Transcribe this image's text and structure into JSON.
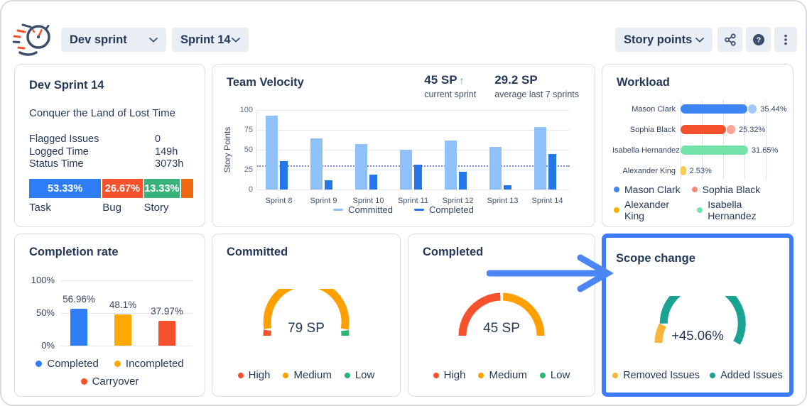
{
  "header": {
    "board_selector": {
      "label": "Dev sprint"
    },
    "sprint_selector": {
      "label": "Sprint 14"
    },
    "unit_selector": {
      "label": "Story points"
    }
  },
  "colors": {
    "navy": "#253858",
    "slate": "#42526E",
    "highlight_border": "#3E7CF7",
    "arrow": "#4C86F2",
    "average_line": "#7B88E8"
  },
  "sprint_card": {
    "title": "Dev Sprint 14",
    "goal": "Conquer the Land of Lost Time",
    "stats": [
      {
        "label": "Flagged Issues",
        "value": "0"
      },
      {
        "label": "Logged Time",
        "value": "149h"
      },
      {
        "label": "Status Time",
        "value": "3073h"
      }
    ],
    "distribution": [
      {
        "label": "Task",
        "value": "53.33%",
        "color": "#2E7CF6",
        "width_pct": 45
      },
      {
        "label": "Bug",
        "value": "26.67%",
        "color": "#F4512C",
        "width_pct": 25
      },
      {
        "label": "Story",
        "value": "13.33%",
        "color": "#3AB27B",
        "width_pct": 22.5
      },
      {
        "label": "",
        "value": "",
        "color": "#F06A11",
        "width_pct": 7.5
      }
    ]
  },
  "velocity": {
    "title": "Team Velocity",
    "stats": [
      {
        "value": "45 SP",
        "trend": "up",
        "caption": "current sprint"
      },
      {
        "value": "29.2 SP",
        "caption": "average last 7 sprints"
      }
    ],
    "chart_data": {
      "type": "bar",
      "ylabel": "Story Points",
      "yticks": [
        0,
        25,
        50,
        75,
        100
      ],
      "ylim": [
        0,
        100
      ],
      "average_line": 29.2,
      "grid": true,
      "legend_position": "bottom",
      "categories": [
        "Sprint 8",
        "Sprint 9",
        "Sprint 10",
        "Sprint 11",
        "Sprint 12",
        "Sprint 13",
        "Sprint 14"
      ],
      "series": [
        {
          "name": "Committed",
          "color": "#8FC0F8",
          "values": [
            93,
            64,
            57,
            50,
            62,
            54,
            79
          ]
        },
        {
          "name": "Completed",
          "color": "#2577E8",
          "values": [
            36,
            12,
            19,
            31,
            22,
            5,
            45
          ]
        }
      ]
    },
    "legend": [
      [
        {
          "label": "Committed",
          "color": "#8FC0F8"
        },
        {
          "label": "Completed",
          "color": "#2577E8"
        }
      ]
    ]
  },
  "workload": {
    "title": "Workload",
    "chart_data": {
      "type": "bar-horizontal",
      "max": 40,
      "rows": [
        {
          "name": "Mason Clark",
          "value": 35.44,
          "label": "35.44%",
          "color": "#3D85F2",
          "tip_color": "#A3C9FB"
        },
        {
          "name": "Sophia Black",
          "value": 25.32,
          "label": "25.32%",
          "color": "#F4512C",
          "tip_color": "#FBA59A"
        },
        {
          "name": "Isabella Hernandez",
          "value": 31.65,
          "label": "31.65%",
          "color": "#73E2AB",
          "tip_color": null
        },
        {
          "name": "Alexander King",
          "value": 2.53,
          "label": "2.53%",
          "color": "#F8CB4F",
          "tip_color": null
        }
      ]
    },
    "legend": [
      [
        {
          "label": "Mason Clark",
          "color": "#3D85F2"
        },
        {
          "label": "Sophia Black",
          "color": "#FB8A72"
        }
      ],
      [
        {
          "label": "Alexander King",
          "color": "#FBB000"
        },
        {
          "label": "Isabella Hernandez",
          "color": "#73E2AB"
        }
      ]
    ]
  },
  "completion": {
    "title": "Completion rate",
    "chart_data": {
      "type": "bar",
      "yticks": [
        {
          "label": "0%",
          "value": 0
        },
        {
          "label": "50%",
          "value": 50
        },
        {
          "label": "100%",
          "value": 100
        }
      ],
      "bars": [
        {
          "name": "Completed",
          "label": "56.96%",
          "value": 56.96,
          "color": "#2E7CF6"
        },
        {
          "name": "Incompleted",
          "label": "48.1%",
          "value": 48.1,
          "color": "#FFA702"
        },
        {
          "name": "Carryover",
          "label": "37.97%",
          "value": 37.97,
          "color": "#F4512C"
        }
      ]
    },
    "legend": [
      [
        {
          "label": "Completed",
          "color": "#2E7CF6"
        },
        {
          "label": "Incompleted",
          "color": "#FFA702"
        }
      ],
      [
        {
          "label": "Carryover",
          "color": "#F4512C"
        }
      ]
    ]
  },
  "committed_card": {
    "title": "Committed",
    "value": "79 SP",
    "chart_data": {
      "type": "gauge",
      "segments": [
        {
          "name": "High",
          "color": "#F4512C",
          "from": 0,
          "to": 0.045
        },
        {
          "name": "Medium",
          "color": "#FFA000",
          "from": 0.058,
          "to": 0.945
        },
        {
          "name": "Low",
          "color": "#2BB673",
          "from": 0.958,
          "to": 1
        }
      ]
    },
    "legend": [
      [
        {
          "label": "High",
          "color": "#F4512C"
        },
        {
          "label": "Medium",
          "color": "#FFA000"
        },
        {
          "label": "Low",
          "color": "#2BB673"
        }
      ]
    ]
  },
  "completed_card": {
    "title": "Completed",
    "value": "45 SP",
    "chart_data": {
      "type": "gauge",
      "segments": [
        {
          "name": "High",
          "color": "#F4512C",
          "from": 0,
          "to": 0.49
        },
        {
          "name": "Medium",
          "color": "#FFA000",
          "from": 0.513,
          "to": 1
        }
      ]
    },
    "legend": [
      [
        {
          "label": "High",
          "color": "#F4512C"
        },
        {
          "label": "Medium",
          "color": "#FFA000"
        },
        {
          "label": "Low",
          "color": "#2BB673"
        }
      ]
    ]
  },
  "scope_card": {
    "title": "Scope change",
    "value": "+45.06%",
    "chart_data": {
      "type": "gauge",
      "segments": [
        {
          "name": "Removed Issues",
          "color": "#F9B53B",
          "from": 0,
          "to": 0.15
        },
        {
          "name": "Added Issues",
          "color": "#19A390",
          "from": 0.165,
          "to": 1
        }
      ]
    },
    "legend": [
      [
        {
          "label": "Removed Issues",
          "color": "#F9B53B"
        },
        {
          "label": "Added Issues",
          "color": "#19A390"
        }
      ]
    ]
  }
}
